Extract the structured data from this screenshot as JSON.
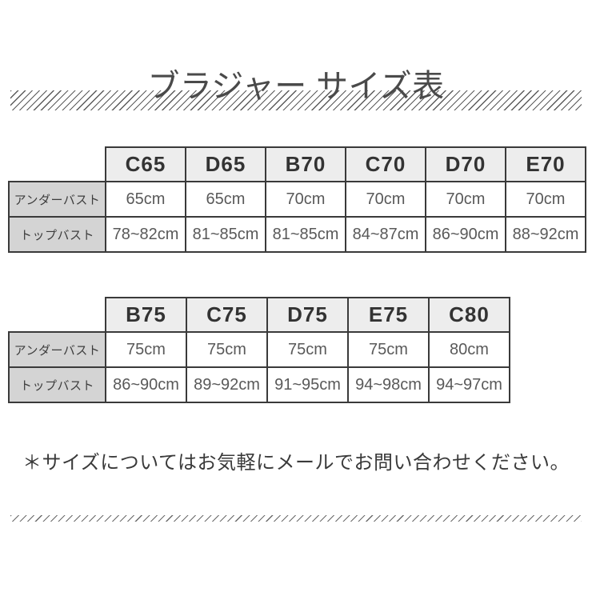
{
  "title": "ブラジャー サイズ表",
  "colors": {
    "border": "#3a3a3a",
    "header_bg": "#ededed",
    "label_bg": "#d4d4d4",
    "title_text": "#4a4a4a",
    "value_text": "#595959"
  },
  "table1": {
    "columns": [
      "C65",
      "D65",
      "B70",
      "C70",
      "D70",
      "E70"
    ],
    "rows": [
      {
        "label": "アンダーバスト",
        "values": [
          "65cm",
          "65cm",
          "70cm",
          "70cm",
          "70cm",
          "70cm"
        ]
      },
      {
        "label": "トップバスト",
        "values": [
          "78~82cm",
          "81~85cm",
          "81~85cm",
          "84~87cm",
          "86~90cm",
          "88~92cm"
        ]
      }
    ]
  },
  "table2": {
    "columns": [
      "B75",
      "C75",
      "D75",
      "E75",
      "C80"
    ],
    "rows": [
      {
        "label": "アンダーバスト",
        "values": [
          "75cm",
          "75cm",
          "75cm",
          "75cm",
          "80cm"
        ]
      },
      {
        "label": "トップバスト",
        "values": [
          "86~90cm",
          "89~92cm",
          "91~95cm",
          "94~98cm",
          "94~97cm"
        ]
      }
    ]
  },
  "footer_note": "＊サイズについてはお気軽にメールでお問い合わせください。"
}
